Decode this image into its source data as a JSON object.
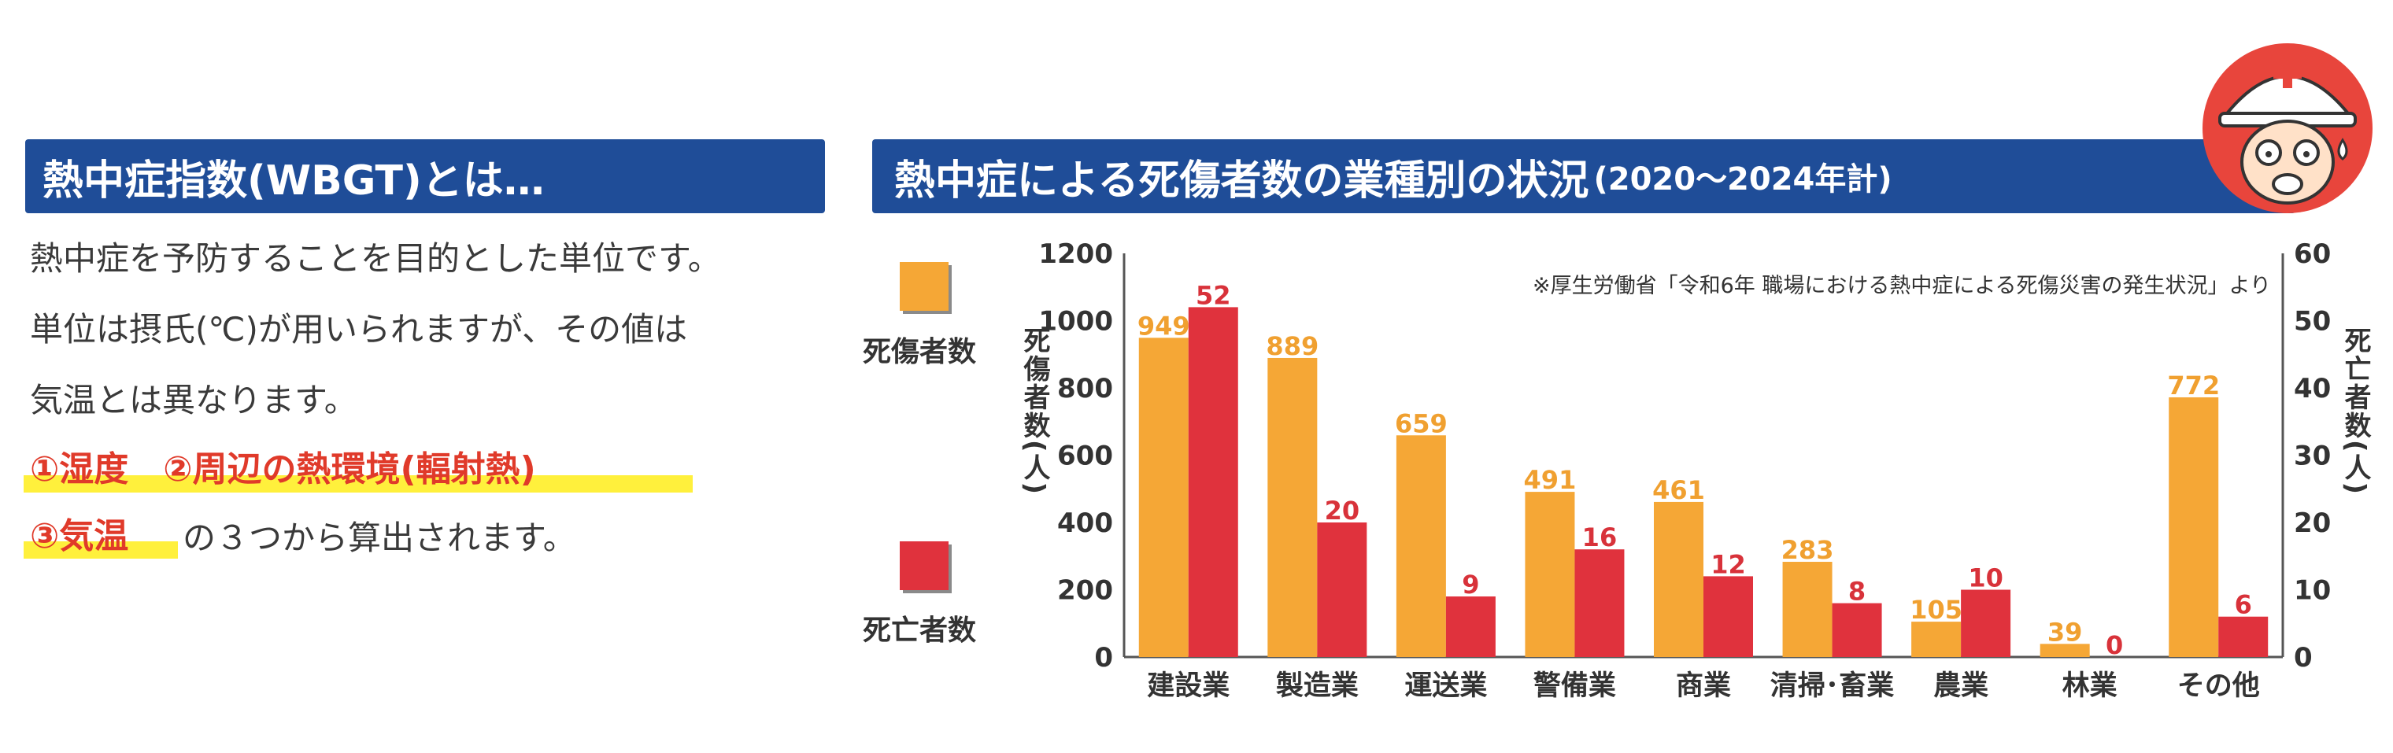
{
  "left": {
    "heading": "熱中症指数(WBGT)とは…",
    "lines": [
      "熱中症を予防することを目的とした単位です。",
      "単位は摂氏(℃)が用いられますが、その値は",
      "気温とは異なります。"
    ],
    "factors_line1": "①湿度　②周辺の熱環境(輻射熱)",
    "factors_line2_red": "③気温",
    "factors_line2_rest": "の３つから算出されます。",
    "highlight_color": "#fff03c",
    "emphasis_color": "#e03a2a"
  },
  "right": {
    "heading_main": "熱中症による死傷者数の業種別の状況",
    "heading_sub": "(2020～2024年計)",
    "heading_bg": "#1f4d98"
  },
  "chart_data": {
    "type": "bar",
    "title": "熱中症による死傷者数の業種別の状況(2020～2024年計)",
    "source_note": "※厚生労働省「令和6年 職場における熱中症による死傷災害の発生状況」より",
    "categories": [
      "建設業",
      "製造業",
      "運送業",
      "警備業",
      "商業",
      "清掃･畜業",
      "農業",
      "林業",
      "その他"
    ],
    "series": [
      {
        "name": "死傷者数",
        "axis": "left",
        "color": "#f5a736",
        "label_color": "#f0a030",
        "values": [
          949,
          889,
          659,
          491,
          461,
          283,
          105,
          39,
          772
        ]
      },
      {
        "name": "死亡者数",
        "axis": "right",
        "color": "#e0323d",
        "label_color": "#d8323a",
        "values": [
          52,
          20,
          9,
          16,
          12,
          8,
          10,
          0,
          6
        ]
      }
    ],
    "ylabel_left": "死傷者数(人)",
    "ylabel_right": "死亡者数(人)",
    "ylim_left": [
      0,
      1200
    ],
    "ylim_right": [
      0,
      60
    ],
    "yticks_left": [
      0,
      200,
      400,
      600,
      800,
      1000,
      1200
    ],
    "yticks_right": [
      0,
      10,
      20,
      30,
      40,
      50,
      60
    ],
    "grid": false,
    "legend": "left"
  }
}
